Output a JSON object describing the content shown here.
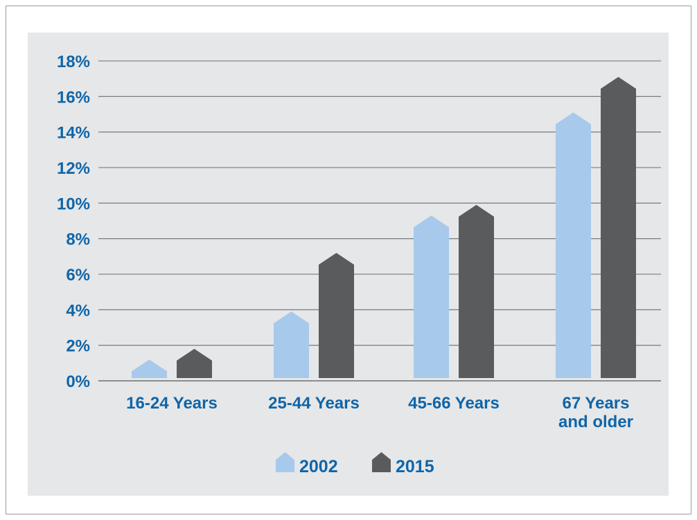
{
  "chart_data": {
    "type": "bar",
    "categories": [
      "16-24 Years",
      "25-44 Years",
      "45-66 Years",
      "67 Years and older"
    ],
    "category_lines": [
      [
        "16-24 Years"
      ],
      [
        "25-44 Years"
      ],
      [
        "45-66 Years"
      ],
      [
        "67 Years",
        "and older"
      ]
    ],
    "series": [
      {
        "name": "2002",
        "values": [
          1.2,
          3.9,
          9.3,
          15.1
        ],
        "color": "#a7c9ec"
      },
      {
        "name": "2015",
        "values": [
          1.8,
          7.2,
          9.9,
          17.1
        ],
        "color": "#5a5b5d"
      }
    ],
    "y_ticks": [
      "0%",
      "2%",
      "4%",
      "6%",
      "8%",
      "10%",
      "12%",
      "14%",
      "16%",
      "18%"
    ],
    "ylim": [
      0,
      18
    ],
    "grid": true,
    "legend_position": "bottom",
    "colors": {
      "text": "#0f65a8",
      "grid": "#6d6e71",
      "background": "#e6e7e8"
    }
  }
}
